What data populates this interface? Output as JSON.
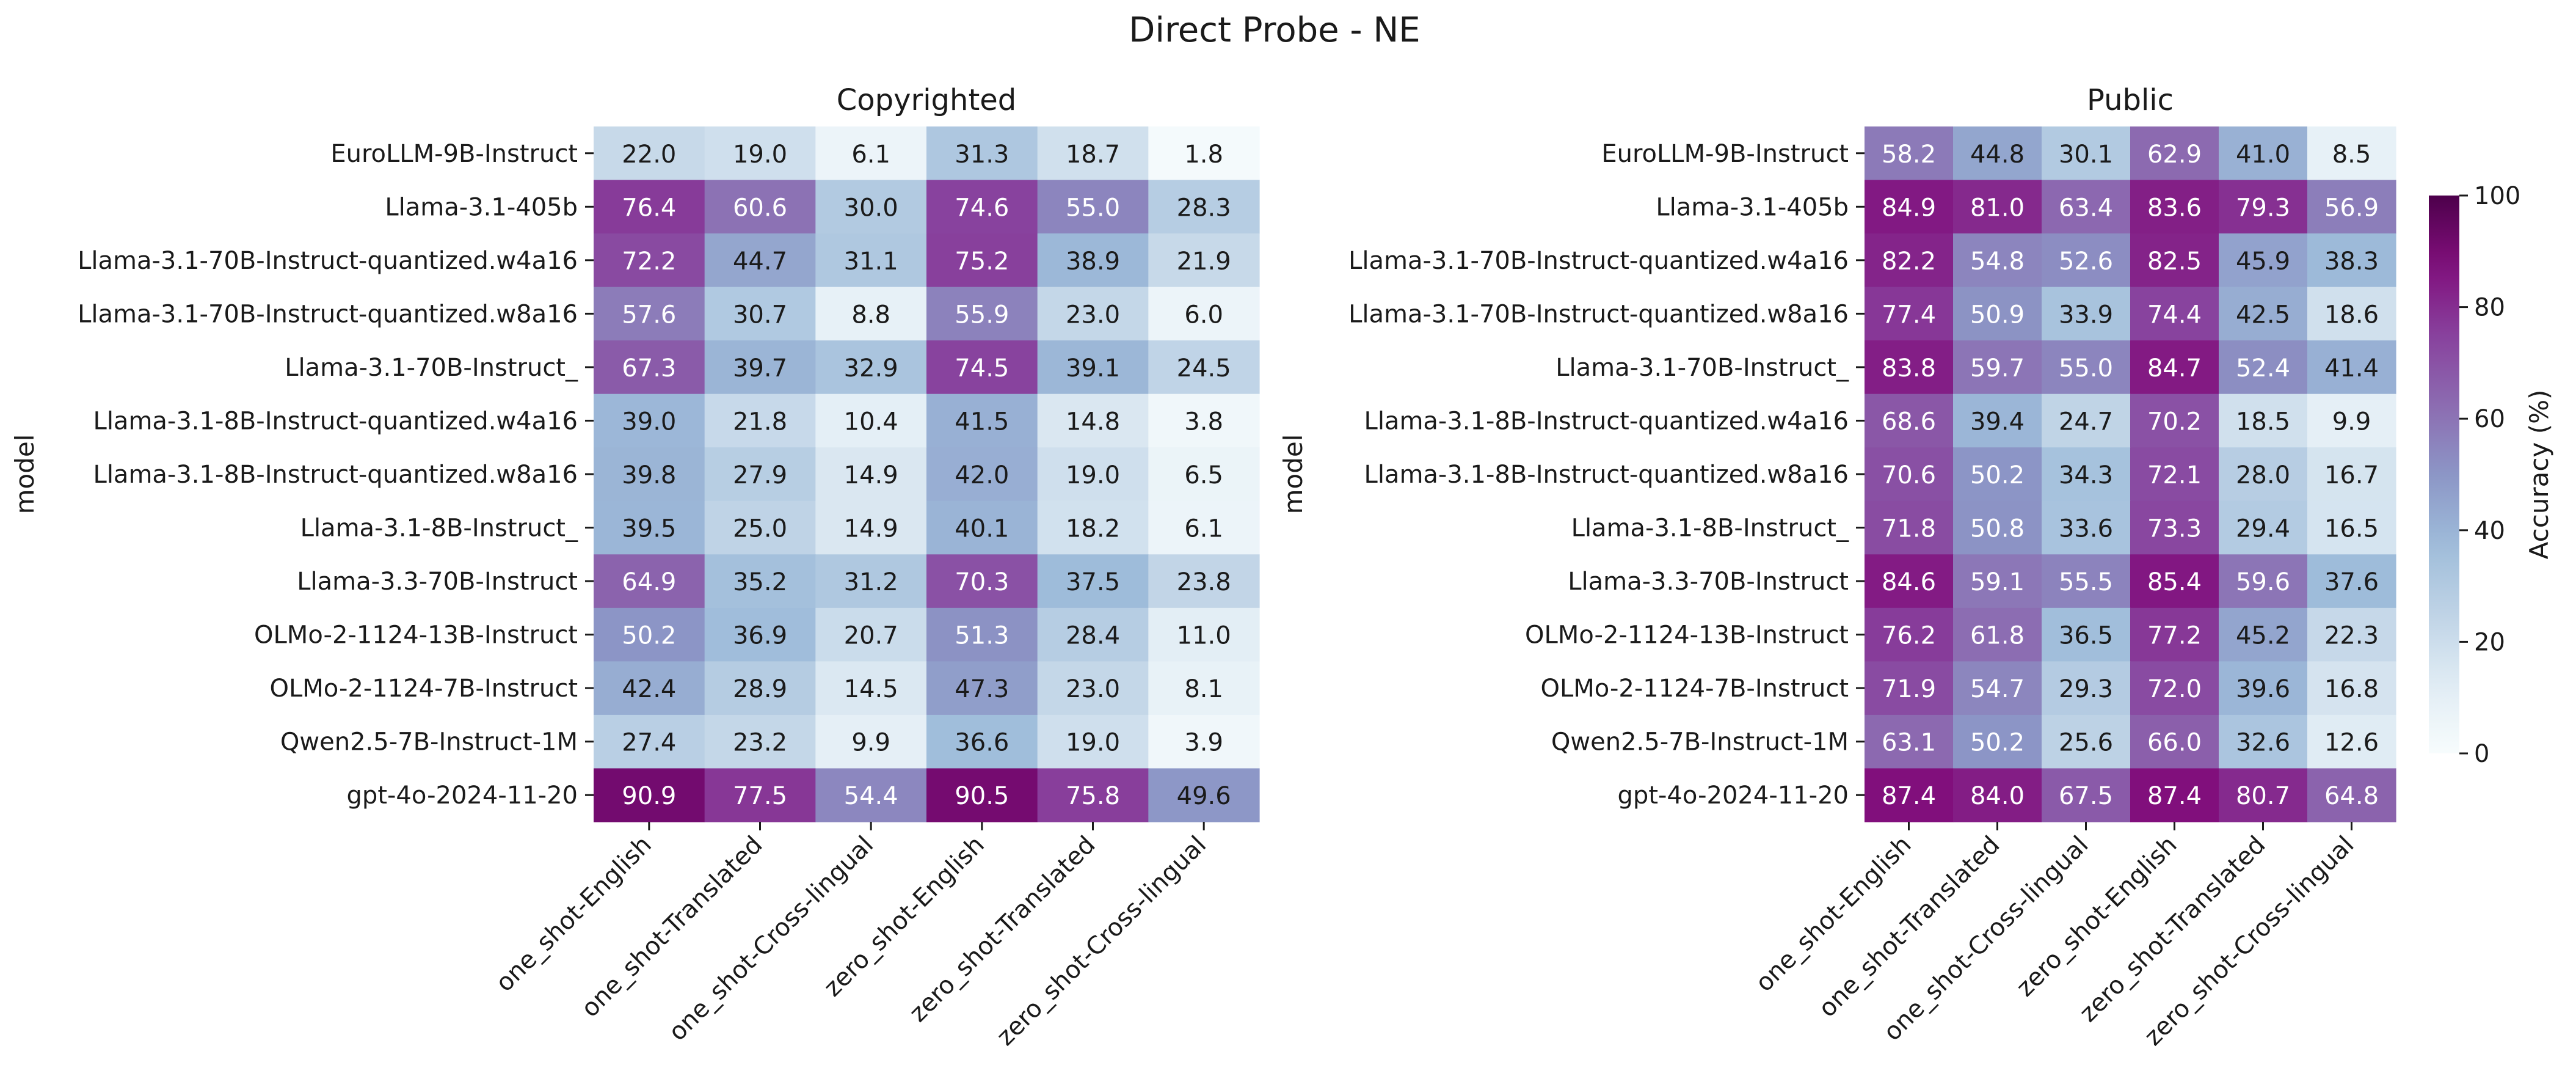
{
  "chart_data": {
    "type": "heatmap",
    "title": "Direct Probe - NE",
    "ylabel": "model",
    "colorbar": {
      "label": "Accuracy (%)",
      "range": [
        0,
        100
      ],
      "ticks": [
        "0",
        "20",
        "40",
        "60",
        "80",
        "100"
      ],
      "colormap": "BuPu"
    },
    "rows": [
      "EuroLLM-9B-Instruct",
      "Llama-3.1-405b",
      "Llama-3.1-70B-Instruct-quantized.w4a16",
      "Llama-3.1-70B-Instruct-quantized.w8a16",
      "Llama-3.1-70B-Instruct_",
      "Llama-3.1-8B-Instruct-quantized.w4a16",
      "Llama-3.1-8B-Instruct-quantized.w8a16",
      "Llama-3.1-8B-Instruct_",
      "Llama-3.3-70B-Instruct",
      "OLMo-2-1124-13B-Instruct",
      "OLMo-2-1124-7B-Instruct",
      "Qwen2.5-7B-Instruct-1M",
      "gpt-4o-2024-11-20"
    ],
    "columns": [
      "one_shot-English",
      "one_shot-Translated",
      "one_shot-Cross-lingual",
      "zero_shot-English",
      "zero_shot-Translated",
      "zero_shot-Cross-lingual"
    ],
    "panels": [
      {
        "title": "Copyrighted",
        "values": [
          [
            22.0,
            19.0,
            6.1,
            31.3,
            18.7,
            1.8
          ],
          [
            76.4,
            60.6,
            30.0,
            74.6,
            55.0,
            28.3
          ],
          [
            72.2,
            44.7,
            31.1,
            75.2,
            38.9,
            21.9
          ],
          [
            57.6,
            30.7,
            8.8,
            55.9,
            23.0,
            6.0
          ],
          [
            67.3,
            39.7,
            32.9,
            74.5,
            39.1,
            24.5
          ],
          [
            39.0,
            21.8,
            10.4,
            41.5,
            14.8,
            3.8
          ],
          [
            39.8,
            27.9,
            14.9,
            42.0,
            19.0,
            6.5
          ],
          [
            39.5,
            25.0,
            14.9,
            40.1,
            18.2,
            6.1
          ],
          [
            64.9,
            35.2,
            31.2,
            70.3,
            37.5,
            23.8
          ],
          [
            50.2,
            36.9,
            20.7,
            51.3,
            28.4,
            11.0
          ],
          [
            42.4,
            28.9,
            14.5,
            47.3,
            23.0,
            8.1
          ],
          [
            27.4,
            23.2,
            9.9,
            36.6,
            19.0,
            3.9
          ],
          [
            90.9,
            77.5,
            54.4,
            90.5,
            75.8,
            49.6
          ]
        ]
      },
      {
        "title": "Public",
        "values": [
          [
            58.2,
            44.8,
            30.1,
            62.9,
            41.0,
            8.5
          ],
          [
            84.9,
            81.0,
            63.4,
            83.6,
            79.3,
            56.9
          ],
          [
            82.2,
            54.8,
            52.6,
            82.5,
            45.9,
            38.3
          ],
          [
            77.4,
            50.9,
            33.9,
            74.4,
            42.5,
            18.6
          ],
          [
            83.8,
            59.7,
            55.0,
            84.7,
            52.4,
            41.4
          ],
          [
            68.6,
            39.4,
            24.7,
            70.2,
            18.5,
            9.9
          ],
          [
            70.6,
            50.2,
            34.3,
            72.1,
            28.0,
            16.7
          ],
          [
            71.8,
            50.8,
            33.6,
            73.3,
            29.4,
            16.5
          ],
          [
            84.6,
            59.1,
            55.5,
            85.4,
            59.6,
            37.6
          ],
          [
            76.2,
            61.8,
            36.5,
            77.2,
            45.2,
            22.3
          ],
          [
            71.9,
            54.7,
            29.3,
            72.0,
            39.6,
            16.8
          ],
          [
            63.1,
            50.2,
            25.6,
            66.0,
            32.6,
            12.6
          ],
          [
            87.4,
            84.0,
            67.5,
            87.4,
            80.7,
            64.8
          ]
        ]
      }
    ]
  }
}
